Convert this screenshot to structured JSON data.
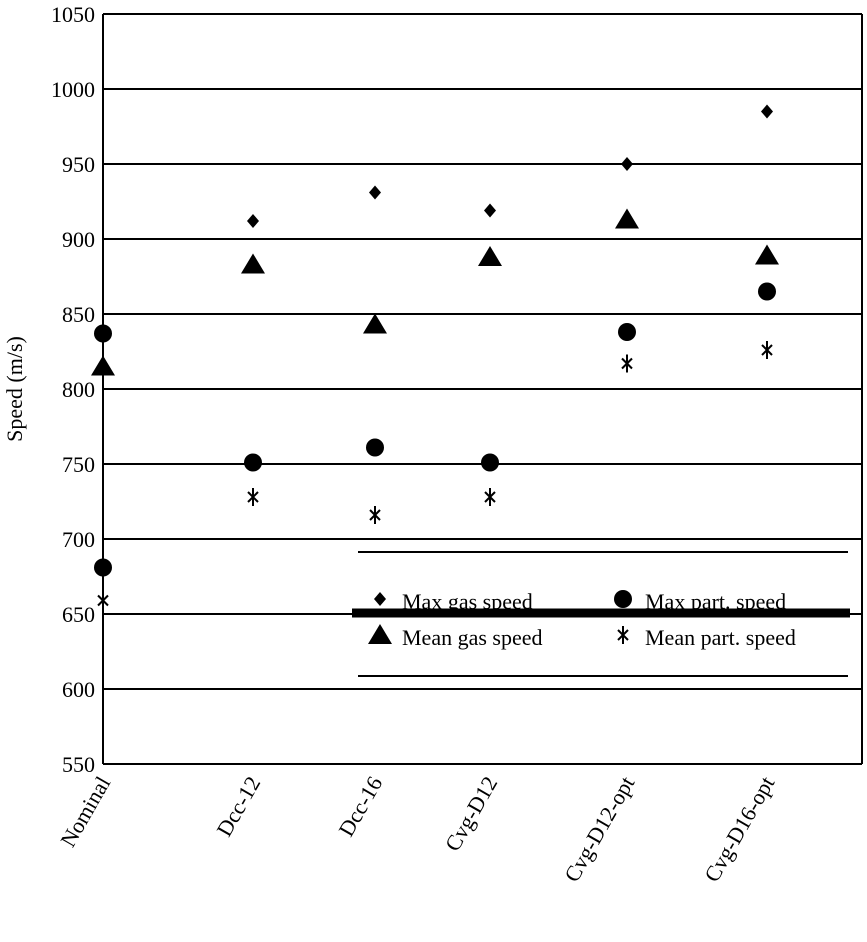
{
  "chart_data": {
    "type": "scatter",
    "title": "",
    "xlabel": "",
    "ylabel": "Speed (m/s)",
    "ylim": [
      550,
      1050
    ],
    "yticks": [
      550,
      600,
      650,
      700,
      750,
      800,
      850,
      900,
      950,
      1000,
      1050
    ],
    "grid": true,
    "legend_position": "bottom-right",
    "categories": [
      "Nominal",
      "Dcc-12",
      "Dcc-16",
      "Cvg-D12",
      "Cvg-D12-opt",
      "Cvg-D16-opt"
    ],
    "series": [
      {
        "name": "Max gas speed",
        "marker": "diamond",
        "values": [
          837,
          912,
          931,
          919,
          950,
          985
        ],
        "marker_overrides": [
          "circle",
          null,
          null,
          null,
          null,
          null
        ]
      },
      {
        "name": "Max part. speed",
        "marker": "circle",
        "values": [
          681,
          751,
          761,
          751,
          838,
          865
        ]
      },
      {
        "name": "Mean gas speed",
        "marker": "triangle",
        "values": [
          815,
          883,
          843,
          888,
          913,
          889
        ]
      },
      {
        "name": "Mean part. speed",
        "marker": "asterisk",
        "values": [
          659,
          728,
          716,
          728,
          817,
          826
        ]
      }
    ]
  }
}
